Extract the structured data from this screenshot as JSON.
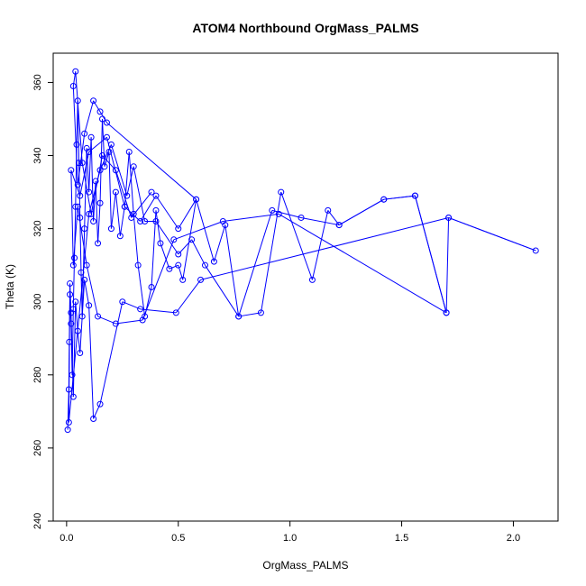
{
  "chart_data": {
    "type": "line",
    "title": "ATOM4 Northbound OrgMass_PALMS",
    "xlabel": "OrgMass_PALMS",
    "ylabel": "Theta (K)",
    "xlim": [
      -0.06,
      2.2
    ],
    "ylim": [
      240,
      368
    ],
    "xticks": [
      "0.0",
      "0.5",
      "1.0",
      "1.5",
      "2.0"
    ],
    "yticks": [
      "240",
      "260",
      "280",
      "300",
      "320",
      "340",
      "360"
    ],
    "grid": false,
    "legend": "none",
    "series_color": "#0000ff",
    "marker": "open-circle",
    "series": [
      {
        "x": [
          0.005,
          0.01,
          0.012,
          0.015,
          0.02,
          0.025,
          0.03,
          0.035,
          0.04,
          0.045,
          0.05,
          0.055,
          0.06,
          0.065,
          0.07,
          0.08,
          0.09,
          0.1,
          0.11,
          0.12,
          0.13,
          0.14,
          0.15,
          0.16,
          0.17,
          0.19,
          0.2,
          0.22,
          0.24,
          0.26,
          0.28,
          0.3,
          0.32,
          0.35,
          0.38,
          0.4,
          0.42,
          0.46,
          0.5,
          0.52,
          0.58,
          0.66,
          0.71,
          0.77,
          0.87,
          0.96,
          1.1,
          1.17,
          1.22,
          1.42,
          1.56,
          1.7,
          1.71,
          2.1,
          1.71,
          0.6,
          0.49,
          0.33,
          0.25,
          0.15,
          0.12,
          0.1,
          0.08,
          0.06,
          0.05,
          0.04,
          0.03,
          0.02,
          0.015,
          0.01,
          0.1,
          0.15,
          0.2,
          0.27,
          0.3,
          0.35,
          0.4,
          0.5,
          0.56,
          0.62,
          0.77,
          0.92,
          1.05,
          1.22,
          1.42,
          1.56,
          1.7,
          0.95,
          0.7,
          0.48,
          0.34,
          0.22,
          0.14,
          0.09,
          0.05,
          0.03,
          0.02,
          0.06,
          0.1,
          0.18,
          0.26,
          0.33,
          0.4,
          0.5,
          0.58,
          0.18,
          0.15,
          0.12,
          0.08,
          0.05,
          0.03,
          0.04,
          0.07,
          0.11,
          0.16,
          0.22,
          0.29,
          0.38
        ],
        "y": [
          265,
          276,
          289,
          302,
          294,
          280,
          298,
          312,
          326,
          343,
          355,
          338,
          323,
          308,
          296,
          320,
          342,
          330,
          345,
          322,
          333,
          316,
          327,
          350,
          337,
          341,
          320,
          330,
          318,
          326,
          341,
          324,
          310,
          296,
          304,
          325,
          316,
          309,
          310,
          306,
          328,
          311,
          321,
          296,
          297,
          330,
          306,
          325,
          321,
          328,
          329,
          297,
          323,
          314,
          323,
          306,
          297,
          298,
          300,
          272,
          268,
          299,
          306,
          286,
          292,
          300,
          274,
          297,
          305,
          267,
          324,
          336,
          343,
          329,
          337,
          322,
          322,
          313,
          317,
          310,
          296,
          325,
          323,
          321,
          328,
          329,
          297,
          324,
          322,
          317,
          295,
          294,
          296,
          310,
          326,
          310,
          336,
          329,
          341,
          345,
          326,
          322,
          329,
          320,
          328,
          349,
          352,
          355,
          346,
          332,
          359,
          363,
          338,
          324,
          340,
          336,
          323,
          330
        ]
      }
    ]
  }
}
